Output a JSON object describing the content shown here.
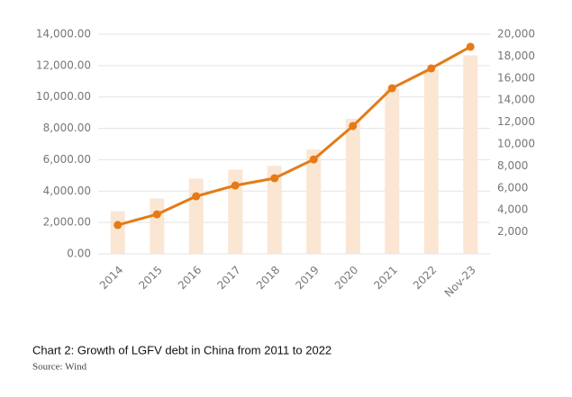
{
  "chart_data": {
    "type": "bar-line",
    "caption": "Chart 2: Growth of LGFV debt in China from 2011 to 2022",
    "source": "Source: Wind",
    "categories": [
      "2014",
      "2015",
      "2016",
      "2017",
      "2018",
      "2019",
      "2020",
      "2021",
      "2022",
      "Nov-23"
    ],
    "series": [
      {
        "type": "bar",
        "axis": "y2",
        "color": "#fbe6d4",
        "values": [
          3880,
          5040,
          6850,
          7680,
          8010,
          9500,
          12300,
          15030,
          16760,
          18080
        ]
      },
      {
        "type": "line",
        "color": "#e47b17",
        "values": [
          1840,
          2520,
          3670,
          4360,
          4820,
          6020,
          8150,
          10560,
          11820,
          13200
        ]
      }
    ],
    "ylim": [
      0,
      14000
    ],
    "yticks": [
      {
        "value": 0,
        "label": "0.00"
      },
      {
        "value": 2000,
        "label": "2,000.00"
      },
      {
        "value": 4000,
        "label": "4,000.00"
      },
      {
        "value": 6000,
        "label": "6,000.00"
      },
      {
        "value": 8000,
        "label": "8,000.00"
      },
      {
        "value": 10000,
        "label": "10,000.00"
      },
      {
        "value": 12000,
        "label": "12,000.00"
      },
      {
        "value": 14000,
        "label": "14,000.00"
      }
    ],
    "y2lim": [
      0,
      20000
    ],
    "y2ticks": [
      {
        "value": 2000,
        "label": "2,000"
      },
      {
        "value": 4000,
        "label": "4,000"
      },
      {
        "value": 6000,
        "label": "6,000"
      },
      {
        "value": 8000,
        "label": "8,000"
      },
      {
        "value": 10000,
        "label": "10,000"
      },
      {
        "value": 12000,
        "label": "12,000"
      },
      {
        "value": 14000,
        "label": "14,000"
      },
      {
        "value": 16000,
        "label": "16,000"
      },
      {
        "value": 18000,
        "label": "18,000"
      },
      {
        "value": 20000,
        "label": "20,000"
      }
    ],
    "grid": true
  }
}
